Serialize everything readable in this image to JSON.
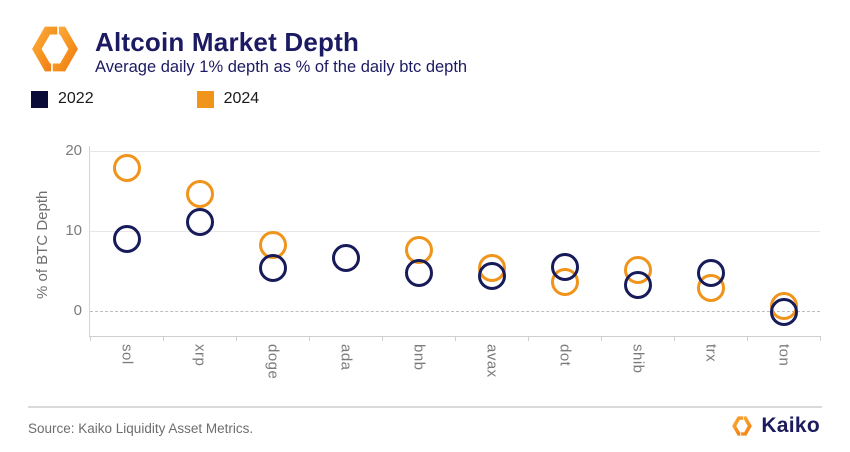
{
  "header": {
    "title": "Altcoin Market Depth",
    "subtitle": "Average daily 1% depth as % of the daily btc depth"
  },
  "legend": [
    {
      "label": "2022",
      "color": "#0b0b38"
    },
    {
      "label": "2024",
      "color": "#f0941c"
    }
  ],
  "chart_data": {
    "type": "scatter",
    "title": "Altcoin Market Depth",
    "subtitle": "Average daily 1% depth as % of the daily btc depth",
    "categories": [
      "sol",
      "xrp",
      "doge",
      "ada",
      "bnb",
      "avax",
      "dot",
      "shib",
      "trx",
      "ton"
    ],
    "series": [
      {
        "name": "2022",
        "color": "#171b59",
        "values": [
          9.0,
          11.1,
          5.4,
          6.6,
          4.8,
          4.4,
          5.5,
          3.3,
          4.7,
          -0.1
        ]
      },
      {
        "name": "2024",
        "color": "#f0941c",
        "values": [
          17.9,
          14.6,
          8.2,
          null,
          7.6,
          5.4,
          3.6,
          5.1,
          2.9,
          0.6
        ]
      }
    ],
    "xlabel": "",
    "ylabel": "% of BTC Depth",
    "yticks": [
      0,
      10,
      20
    ],
    "ylim": [
      -3.5,
      21
    ],
    "grid": "horizontal",
    "zero_line_dashed": true,
    "legend_position": "top-left",
    "marker": "open-circle"
  },
  "footer": {
    "source": "Source: Kaiko Liquidity Asset Metrics.",
    "brand": "Kaiko"
  },
  "colors": {
    "navy_2022": "#171b59",
    "orange_2024": "#f0941c",
    "title_navy": "#1c1a62",
    "axis_gray": "#7b7b7b",
    "background": "#ffffff"
  }
}
